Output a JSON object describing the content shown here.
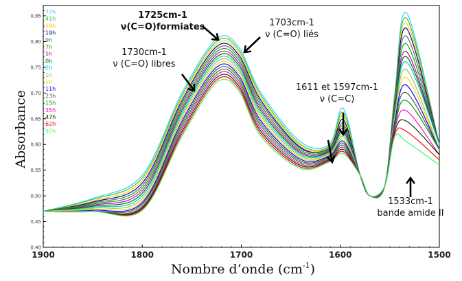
{
  "chart_data": {
    "type": "line",
    "xlabel": "Nombre d’onde (cm",
    "xlabel_sup": "-1",
    "xlabel_end": ")",
    "ylabel": "Absorbance",
    "xlim": [
      1900,
      1500
    ],
    "ylim": [
      0.4,
      0.87
    ],
    "xticks": [
      "1900",
      "1800",
      "1700",
      "1600",
      "1500"
    ],
    "yticks": [
      "0,40",
      "0,45",
      "0,50",
      "0,55",
      "0,60",
      "0,65",
      "0,70",
      "0,75",
      "0,80",
      "0,85"
    ],
    "legend_placement": "top-left",
    "series": [
      {
        "name": "77h",
        "color": "#33ccff",
        "values": [
          0.47,
          0.495,
          0.54,
          0.7,
          0.805,
          0.79,
          0.7,
          0.605,
          0.6,
          0.67,
          0.54,
          0.5,
          0.52,
          0.7,
          0.855,
          0.6
        ]
      },
      {
        "name": "41h",
        "color": "#33cc33",
        "values": [
          0.47,
          0.493,
          0.535,
          0.695,
          0.8,
          0.785,
          0.695,
          0.6,
          0.597,
          0.662,
          0.54,
          0.5,
          0.52,
          0.695,
          0.845,
          0.6
        ]
      },
      {
        "name": "39h",
        "color": "#ffcc00",
        "values": [
          0.47,
          0.49,
          0.53,
          0.69,
          0.795,
          0.78,
          0.69,
          0.597,
          0.595,
          0.655,
          0.54,
          0.5,
          0.52,
          0.69,
          0.835,
          0.6
        ]
      },
      {
        "name": "19h",
        "color": "#000099",
        "values": [
          0.47,
          0.488,
          0.525,
          0.685,
          0.79,
          0.775,
          0.685,
          0.594,
          0.593,
          0.648,
          0.54,
          0.5,
          0.52,
          0.685,
          0.825,
          0.6
        ]
      },
      {
        "name": "9h",
        "color": "#666666",
        "values": [
          0.47,
          0.486,
          0.52,
          0.68,
          0.785,
          0.77,
          0.68,
          0.592,
          0.592,
          0.64,
          0.54,
          0.5,
          0.52,
          0.68,
          0.81,
          0.6
        ]
      },
      {
        "name": "7h",
        "color": "#00aa00",
        "values": [
          0.47,
          0.484,
          0.515,
          0.675,
          0.78,
          0.765,
          0.675,
          0.589,
          0.59,
          0.635,
          0.54,
          0.5,
          0.52,
          0.675,
          0.795,
          0.6
        ]
      },
      {
        "name": "5h",
        "color": "#cc00cc",
        "values": [
          0.47,
          0.482,
          0.51,
          0.67,
          0.775,
          0.76,
          0.67,
          0.586,
          0.588,
          0.63,
          0.54,
          0.5,
          0.52,
          0.67,
          0.78,
          0.6
        ]
      },
      {
        "name": "0h",
        "color": "#006600",
        "values": [
          0.47,
          0.48,
          0.505,
          0.665,
          0.77,
          0.755,
          0.665,
          0.583,
          0.586,
          0.625,
          0.54,
          0.5,
          0.52,
          0.665,
          0.77,
          0.6
        ]
      },
      {
        "name": "2h",
        "color": "#00cccc",
        "values": [
          0.47,
          0.478,
          0.5,
          0.66,
          0.765,
          0.75,
          0.66,
          0.58,
          0.584,
          0.62,
          0.54,
          0.5,
          0.52,
          0.66,
          0.76,
          0.6
        ]
      },
      {
        "name": "1h",
        "color": "#99cc33",
        "values": [
          0.47,
          0.476,
          0.495,
          0.655,
          0.76,
          0.745,
          0.655,
          0.577,
          0.582,
          0.615,
          0.54,
          0.5,
          0.52,
          0.655,
          0.745,
          0.59
        ]
      },
      {
        "name": "3h",
        "color": "#ffcc33",
        "values": [
          0.47,
          0.474,
          0.49,
          0.65,
          0.755,
          0.74,
          0.65,
          0.574,
          0.58,
          0.61,
          0.54,
          0.5,
          0.52,
          0.65,
          0.73,
          0.59
        ]
      },
      {
        "name": "11h",
        "color": "#0000ff",
        "values": [
          0.47,
          0.472,
          0.487,
          0.645,
          0.75,
          0.735,
          0.645,
          0.571,
          0.578,
          0.606,
          0.54,
          0.5,
          0.52,
          0.645,
          0.715,
          0.59
        ]
      },
      {
        "name": "23h",
        "color": "#555555",
        "values": [
          0.47,
          0.47,
          0.484,
          0.64,
          0.745,
          0.73,
          0.64,
          0.568,
          0.576,
          0.602,
          0.54,
          0.5,
          0.52,
          0.64,
          0.7,
          0.59
        ]
      },
      {
        "name": "15h",
        "color": "#009900",
        "values": [
          0.47,
          0.47,
          0.48,
          0.635,
          0.74,
          0.725,
          0.635,
          0.565,
          0.574,
          0.598,
          0.54,
          0.5,
          0.52,
          0.635,
          0.685,
          0.59
        ]
      },
      {
        "name": "35h",
        "color": "#ff00cc",
        "values": [
          0.47,
          0.47,
          0.478,
          0.63,
          0.735,
          0.72,
          0.63,
          0.562,
          0.572,
          0.594,
          0.54,
          0.5,
          0.52,
          0.63,
          0.665,
          0.58
        ]
      },
      {
        "name": "47h",
        "color": "#003300",
        "values": [
          0.47,
          0.47,
          0.476,
          0.625,
          0.73,
          0.715,
          0.625,
          0.559,
          0.57,
          0.59,
          0.54,
          0.5,
          0.52,
          0.625,
          0.645,
          0.58
        ]
      },
      {
        "name": "62h",
        "color": "#ff0000",
        "values": [
          0.47,
          0.47,
          0.474,
          0.62,
          0.725,
          0.71,
          0.62,
          0.556,
          0.568,
          0.586,
          0.54,
          0.5,
          0.52,
          0.62,
          0.625,
          0.57
        ]
      },
      {
        "name": "92h",
        "color": "#33ff66",
        "values": [
          0.47,
          0.47,
          0.472,
          0.615,
          0.72,
          0.705,
          0.615,
          0.553,
          0.566,
          0.582,
          0.54,
          0.5,
          0.52,
          0.615,
          0.605,
          0.56
        ]
      }
    ],
    "x": [
      1900,
      1850,
      1800,
      1760,
      1725,
      1703,
      1680,
      1640,
      1611,
      1597,
      1580,
      1570,
      1555,
      1545,
      1533,
      1500
    ],
    "annotations": [
      {
        "id": "ann1",
        "lines": [
          "1725cm-1",
          "ν(C=O)formiates"
        ],
        "bold": true
      },
      {
        "id": "ann2",
        "lines": [
          "1703cm-1",
          "ν (C=O) liés"
        ],
        "bold": false
      },
      {
        "id": "ann3",
        "lines": [
          "1730cm-1",
          "ν (C=O) libres"
        ],
        "bold": false
      },
      {
        "id": "ann4",
        "lines": [
          "1611 et 1597cm-1",
          "ν (C=C)"
        ],
        "bold": false
      },
      {
        "id": "ann5",
        "lines": [
          "1533cm-1",
          "bande amide II"
        ],
        "bold": false
      }
    ]
  }
}
